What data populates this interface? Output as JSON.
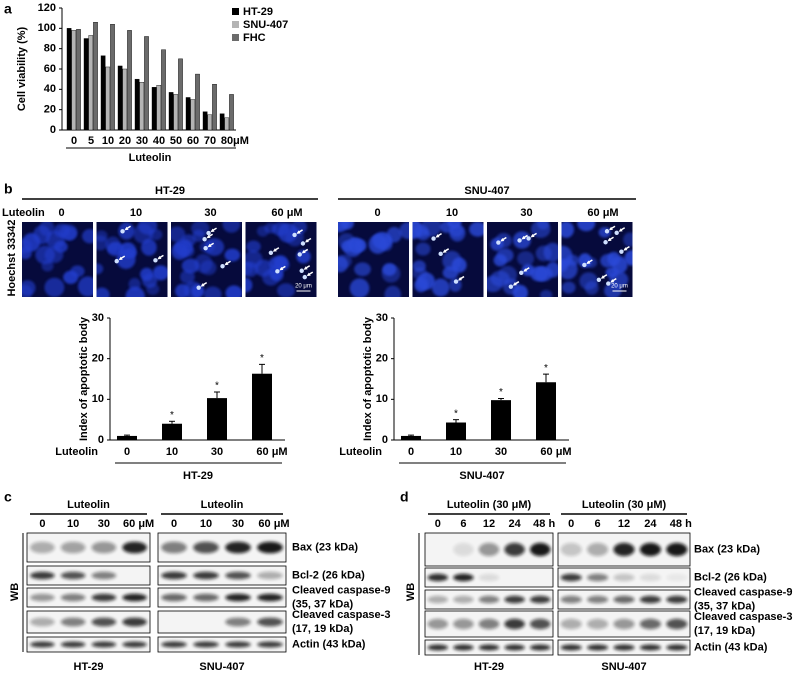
{
  "panel_labels": [
    "a",
    "b",
    "c",
    "d"
  ],
  "chart_data": [
    {
      "type": "bar",
      "y_label": "Cell viability (%)",
      "x_label": "Luteolin",
      "unit": "μM",
      "categories": [
        "0",
        "5",
        "10",
        "20",
        "30",
        "40",
        "50",
        "60",
        "70",
        "80"
      ],
      "series": [
        {
          "name": "HT-29",
          "color": "#000000",
          "values": [
            100,
            90,
            73,
            63,
            50,
            42,
            37,
            32,
            18,
            16
          ]
        },
        {
          "name": "SNU-407",
          "color": "#b4b4b4",
          "values": [
            98,
            93,
            62,
            60,
            47,
            44,
            35,
            30,
            15,
            12
          ]
        },
        {
          "name": "FHC",
          "color": "#6b6b6b",
          "values": [
            99,
            106,
            104,
            98,
            92,
            79,
            70,
            55,
            45,
            35
          ]
        }
      ],
      "ylim": [
        0,
        120
      ],
      "yticks": [
        0,
        20,
        40,
        60,
        80,
        100,
        120
      ]
    },
    {
      "type": "bar",
      "title": "HT-29",
      "y_label": "Index of apoptotic body",
      "x_label": "Luteolin",
      "unit": "μM",
      "categories": [
        "0",
        "10",
        "30",
        "60"
      ],
      "values": [
        1,
        4,
        10.3,
        16.3
      ],
      "errors": [
        0.2,
        0.6,
        1.5,
        2.3
      ],
      "annotations": [
        null,
        "*",
        "*",
        "*"
      ],
      "color": "#000000",
      "ylim": [
        0,
        30
      ],
      "yticks": [
        0,
        10,
        20,
        30
      ]
    },
    {
      "type": "bar",
      "title": "SNU-407",
      "y_label": "Index of apoptotic body",
      "x_label": "Luteolin",
      "unit": "μM",
      "categories": [
        "0",
        "10",
        "30",
        "60"
      ],
      "values": [
        1,
        4.3,
        9.8,
        14.2
      ],
      "errors": [
        0.2,
        0.7,
        0.4,
        2
      ],
      "annotations": [
        null,
        "*",
        "*",
        "*"
      ],
      "color": "#000000",
      "ylim": [
        0,
        30
      ],
      "yticks": [
        0,
        10,
        20,
        30
      ]
    }
  ],
  "microscopy": {
    "stain": "Hoechst 33342",
    "treatment": "Luteolin",
    "doses": [
      "0",
      "10",
      "30",
      "60"
    ],
    "unit": "μM",
    "cell_lines": [
      "HT-29",
      "SNU-407"
    ],
    "scale_bar": "20 μm"
  },
  "western_c": {
    "treatment": "Luteolin",
    "doses": [
      "0",
      "10",
      "30",
      "60"
    ],
    "unit": "μM",
    "method": "WB",
    "cell_lines": [
      "HT-29",
      "SNU-407"
    ],
    "proteins": [
      [
        "Bax (23 kDa)"
      ],
      [
        "Bcl-2 (26 kDa)"
      ],
      [
        "Cleaved caspase-9",
        "(35, 37 kDa)"
      ],
      [
        "Cleaved caspase-3",
        "(17, 19 kDa)"
      ],
      [
        "Actin (43 kDa)"
      ]
    ]
  },
  "western_d": {
    "treatment": "Luteolin (30 μM)",
    "times": [
      "0",
      "6",
      "12",
      "24",
      "48"
    ],
    "unit": "h",
    "method": "WB",
    "cell_lines": [
      "HT-29",
      "SNU-407"
    ],
    "proteins": [
      [
        "Bax (23 kDa)"
      ],
      [
        "Bcl-2 (26 kDa)"
      ],
      [
        "Cleaved caspase-9",
        "(35, 37 kDa)"
      ],
      [
        "Cleaved caspase-3",
        "(17, 19 kDa)"
      ],
      [
        "Actin (43 kDa)"
      ]
    ]
  }
}
